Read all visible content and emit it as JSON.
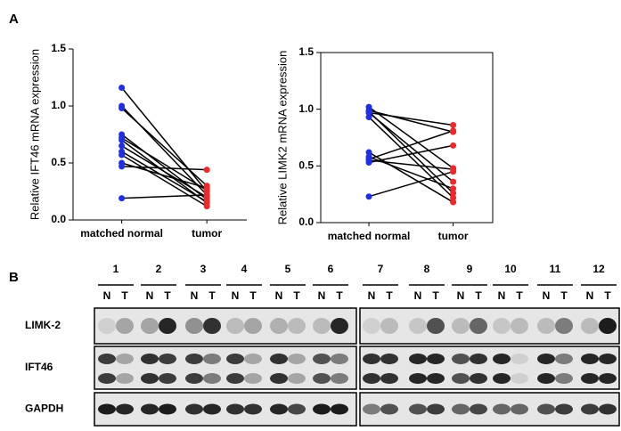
{
  "panel_label": "A",
  "chart_data": [
    {
      "type": "paired",
      "ylabel": "Relative IFT46 mRNA expression",
      "x": [
        "matched normal",
        "tumor"
      ],
      "ylim": [
        0,
        1.5
      ],
      "yticks": [
        {
          "value": 0,
          "label": "0.0"
        },
        0.5,
        {
          "value": 1,
          "label": "1.0"
        },
        1.5
      ],
      "box": false,
      "point_colors": [
        "#1f2fe8",
        "#f02828"
      ],
      "line_color": "#000000",
      "series": [
        {
          "values": [
            1.16,
            0.25
          ]
        },
        {
          "values": [
            1.0,
            0.22
          ]
        },
        {
          "values": [
            0.98,
            0.3
          ]
        },
        {
          "values": [
            0.75,
            0.18
          ]
        },
        {
          "values": [
            0.72,
            0.26
          ]
        },
        {
          "values": [
            0.7,
            0.15
          ]
        },
        {
          "values": [
            0.65,
            0.2
          ]
        },
        {
          "values": [
            0.6,
            0.16
          ]
        },
        {
          "values": [
            0.57,
            0.12
          ]
        },
        {
          "values": [
            0.5,
            0.28
          ]
        },
        {
          "values": [
            0.47,
            0.44
          ]
        },
        {
          "values": [
            0.19,
            0.22
          ]
        }
      ]
    },
    {
      "type": "paired",
      "ylabel": "Relative LIMK2 mRNA expression",
      "x": [
        "matched normal",
        "tumor"
      ],
      "ylim": [
        0,
        1.5
      ],
      "yticks": [
        {
          "value": 0,
          "label": "0.0"
        },
        0.5,
        {
          "value": 1,
          "label": "1.0"
        },
        1.5
      ],
      "box": true,
      "point_colors": [
        "#1f2fe8",
        "#f02828"
      ],
      "line_color": "#000000",
      "series": [
        {
          "values": [
            1.02,
            0.48
          ]
        },
        {
          "values": [
            0.99,
            0.8
          ]
        },
        {
          "values": [
            0.97,
            0.86
          ]
        },
        {
          "values": [
            0.93,
            0.22
          ]
        },
        {
          "values": [
            0.97,
            0.36
          ]
        },
        {
          "values": [
            0.62,
            0.18
          ]
        },
        {
          "values": [
            0.58,
            0.3
          ]
        },
        {
          "values": [
            0.56,
            0.81
          ]
        },
        {
          "values": [
            0.55,
            0.47
          ]
        },
        {
          "values": [
            0.53,
            0.68
          ]
        },
        {
          "values": [
            0.23,
            0.45
          ]
        },
        {
          "values": [
            0.98,
            0.26
          ]
        }
      ]
    }
  ],
  "blot": {
    "label": "B",
    "lanes": [
      "1",
      "2",
      "3",
      "4",
      "5",
      "6",
      "7",
      "8",
      "9",
      "10",
      "11",
      "12"
    ],
    "lane_labels": [
      "N",
      "T"
    ],
    "rows": [
      "LIMK-2",
      "IFT46",
      "GAPDH"
    ]
  }
}
